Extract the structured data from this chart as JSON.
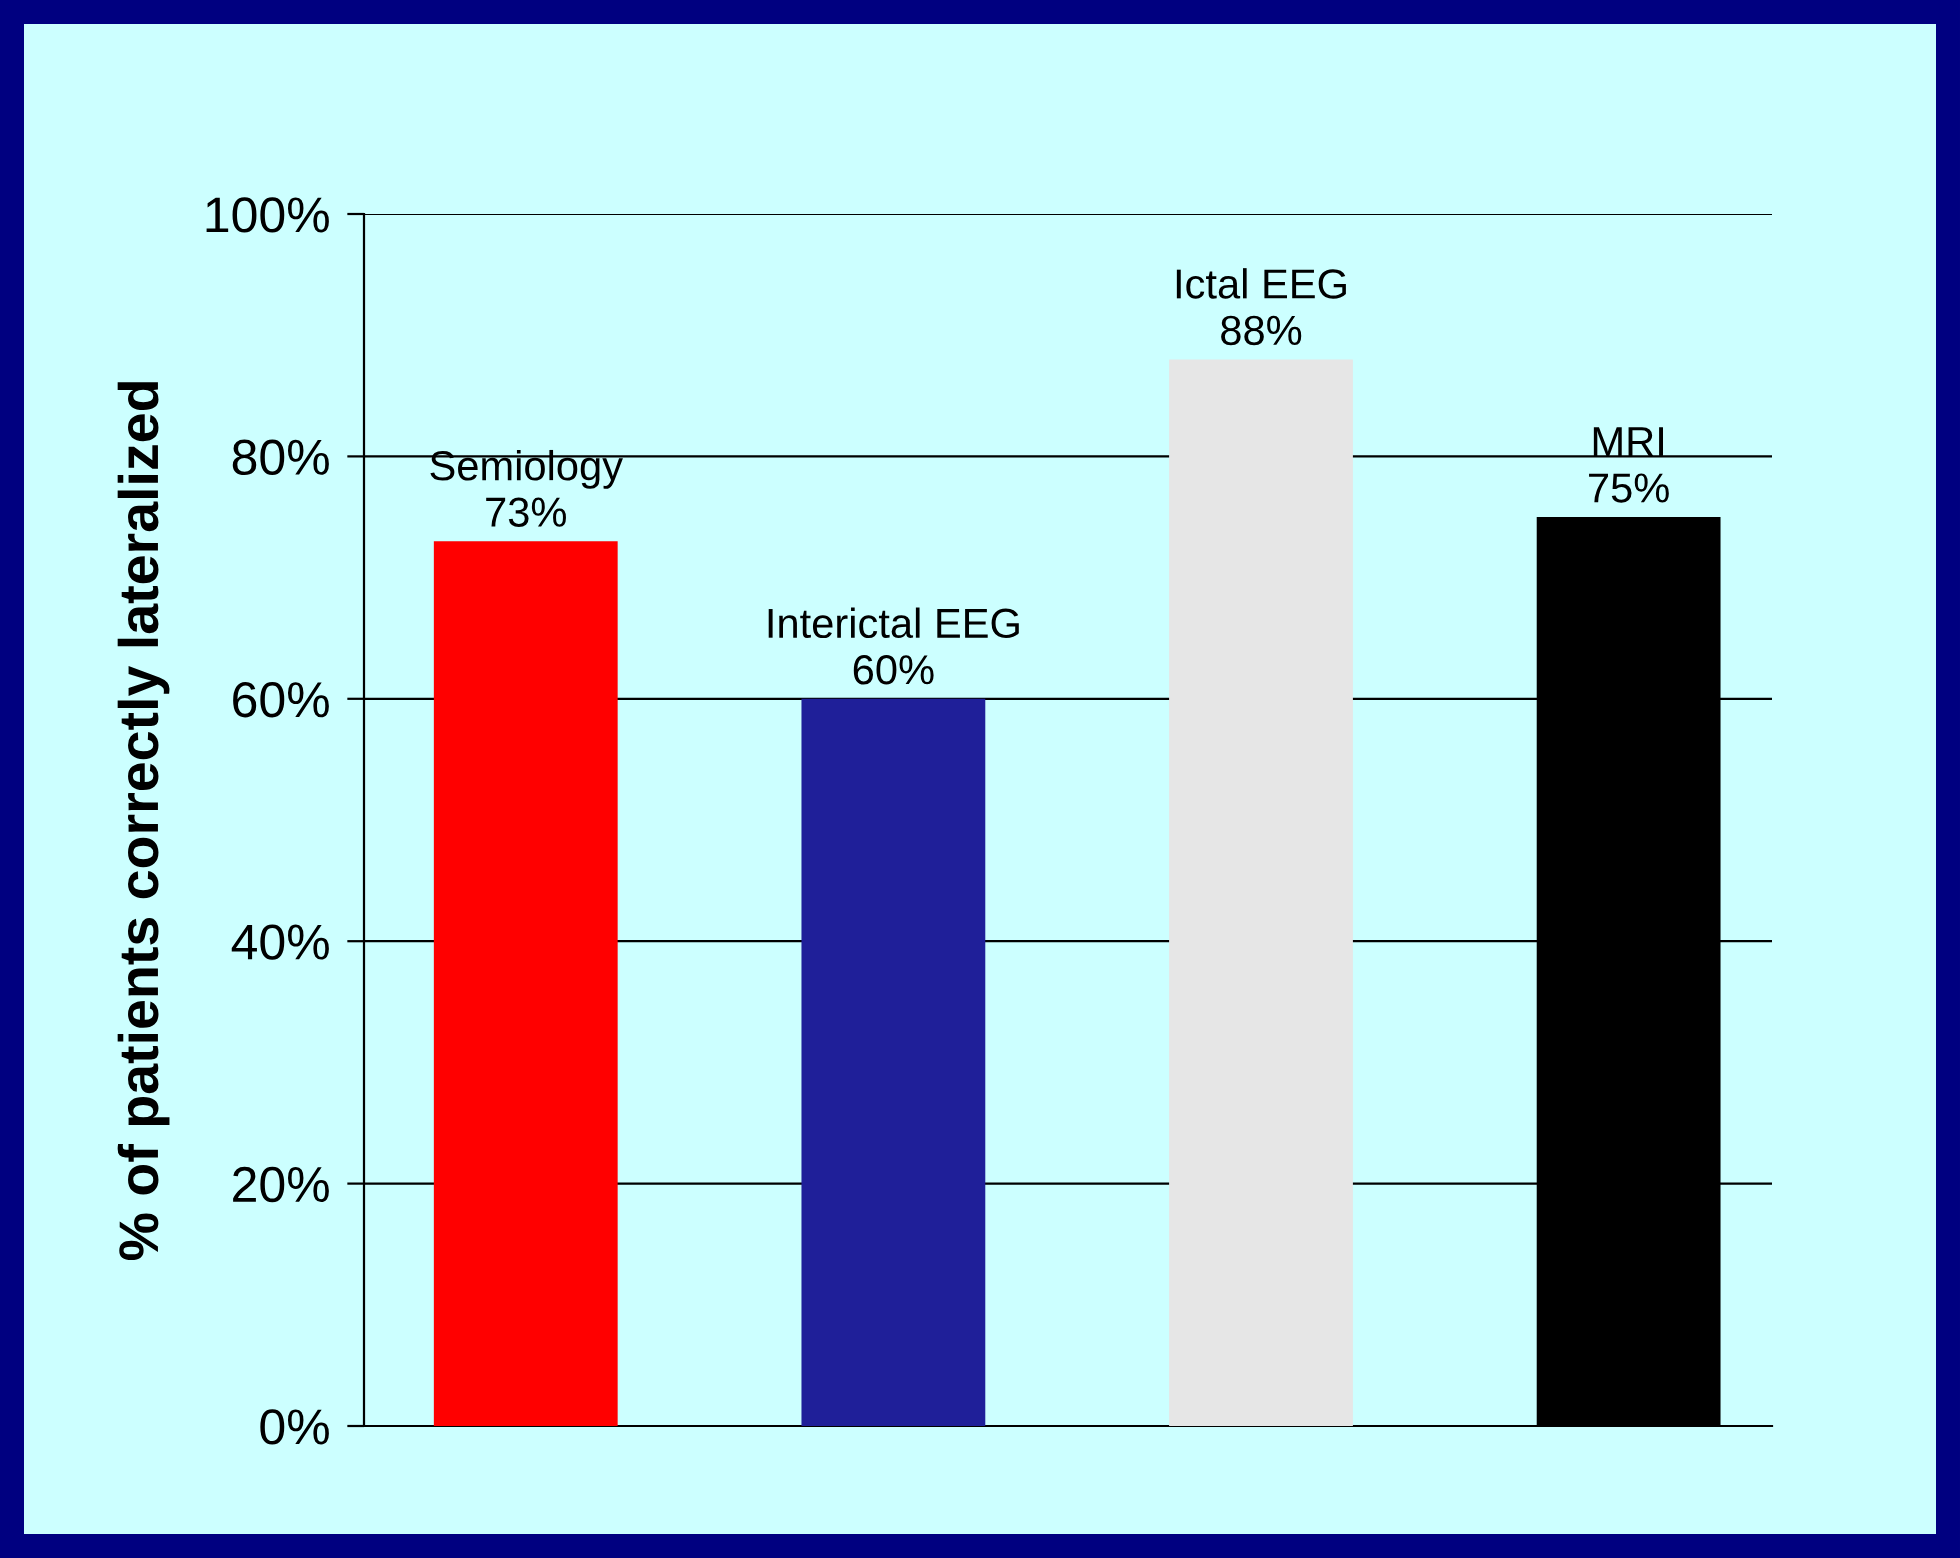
{
  "chart_data": {
    "type": "bar",
    "ylabel": "% of patients correctly lateralized",
    "categories": [
      "Semiology",
      "Interictal EEG",
      "Ictal EEG",
      "MRI"
    ],
    "values": [
      73,
      60,
      88,
      75
    ],
    "colors": [
      "#ff0000",
      "#1f1f99",
      "#e6e6e6",
      "#000000"
    ],
    "value_labels": [
      "73%",
      "60%",
      "88%",
      "75%"
    ],
    "ylim": [
      0,
      100
    ],
    "yticks": [
      {
        "value": 0,
        "label": "0%"
      },
      {
        "value": 20,
        "label": "20%"
      },
      {
        "value": 40,
        "label": "40%"
      },
      {
        "value": 60,
        "label": "60%"
      },
      {
        "value": 80,
        "label": "80%"
      },
      {
        "value": 100,
        "label": "100%"
      }
    ],
    "grid": "y",
    "legend": false
  }
}
